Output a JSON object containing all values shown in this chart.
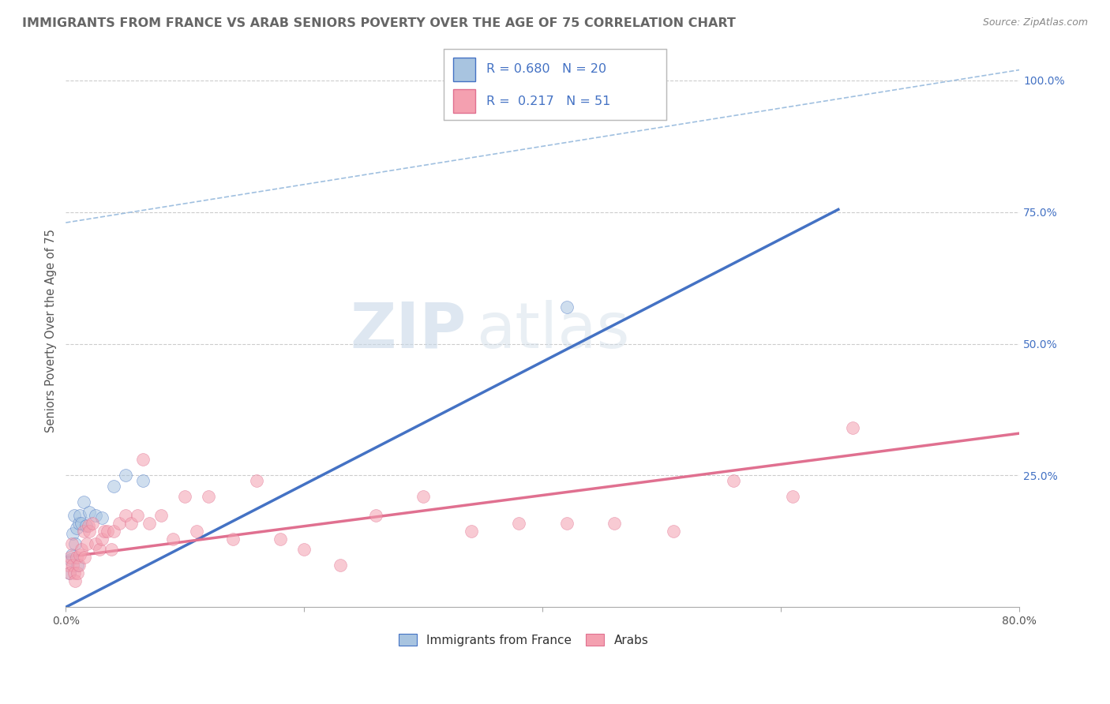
{
  "title": "IMMIGRANTS FROM FRANCE VS ARAB SENIORS POVERTY OVER THE AGE OF 75 CORRELATION CHART",
  "source": "Source: ZipAtlas.com",
  "ylabel": "Seniors Poverty Over the Age of 75",
  "xlabel": "",
  "xlim": [
    0.0,
    0.8
  ],
  "ylim": [
    0.0,
    1.05
  ],
  "xticks": [
    0.0,
    0.2,
    0.4,
    0.6,
    0.8
  ],
  "xticklabels": [
    "0.0%",
    "",
    "",
    "",
    "80.0%"
  ],
  "ytick_positions": [
    0.0,
    0.25,
    0.5,
    0.75,
    1.0
  ],
  "yticklabels_right": [
    "",
    "25.0%",
    "50.0%",
    "75.0%",
    "100.0%"
  ],
  "blue_R": 0.68,
  "blue_N": 20,
  "pink_R": 0.217,
  "pink_N": 51,
  "blue_color": "#a8c4e0",
  "pink_color": "#f4a0b0",
  "blue_line_color": "#4472c4",
  "pink_line_color": "#e07090",
  "diagonal_color": "#a0c0e0",
  "watermark_zip": "ZIP",
  "watermark_atlas": "atlas",
  "title_color": "#666666",
  "legend_text_color": "#333333",
  "legend_RN_color": "#4472c4",
  "blue_scatter_x": [
    0.003,
    0.004,
    0.005,
    0.006,
    0.007,
    0.008,
    0.009,
    0.01,
    0.011,
    0.012,
    0.013,
    0.015,
    0.017,
    0.02,
    0.025,
    0.03,
    0.04,
    0.05,
    0.065,
    0.42
  ],
  "blue_scatter_y": [
    0.065,
    0.09,
    0.1,
    0.14,
    0.175,
    0.12,
    0.15,
    0.08,
    0.16,
    0.175,
    0.16,
    0.2,
    0.155,
    0.18,
    0.175,
    0.17,
    0.23,
    0.25,
    0.24,
    0.57
  ],
  "pink_scatter_x": [
    0.002,
    0.003,
    0.004,
    0.005,
    0.006,
    0.007,
    0.008,
    0.009,
    0.01,
    0.011,
    0.012,
    0.013,
    0.015,
    0.016,
    0.018,
    0.019,
    0.02,
    0.022,
    0.025,
    0.028,
    0.03,
    0.032,
    0.035,
    0.038,
    0.04,
    0.045,
    0.05,
    0.055,
    0.06,
    0.065,
    0.07,
    0.08,
    0.09,
    0.1,
    0.11,
    0.12,
    0.14,
    0.16,
    0.18,
    0.2,
    0.23,
    0.26,
    0.3,
    0.34,
    0.38,
    0.42,
    0.46,
    0.51,
    0.56,
    0.61,
    0.66
  ],
  "pink_scatter_y": [
    0.08,
    0.065,
    0.095,
    0.12,
    0.08,
    0.065,
    0.05,
    0.095,
    0.065,
    0.08,
    0.1,
    0.11,
    0.145,
    0.095,
    0.12,
    0.155,
    0.145,
    0.16,
    0.12,
    0.11,
    0.13,
    0.145,
    0.145,
    0.11,
    0.145,
    0.16,
    0.175,
    0.16,
    0.175,
    0.28,
    0.16,
    0.175,
    0.13,
    0.21,
    0.145,
    0.21,
    0.13,
    0.24,
    0.13,
    0.11,
    0.08,
    0.175,
    0.21,
    0.145,
    0.16,
    0.16,
    0.16,
    0.145,
    0.24,
    0.21,
    0.34
  ],
  "blue_line_x": [
    0.0,
    0.648
  ],
  "blue_line_y": [
    0.0,
    0.755
  ],
  "pink_line_x": [
    0.0,
    0.8
  ],
  "pink_line_y": [
    0.095,
    0.33
  ],
  "diag_line_x": [
    0.0,
    0.8
  ],
  "diag_line_y": [
    0.73,
    1.02
  ],
  "marker_size": 130,
  "marker_alpha": 0.55,
  "background_color": "#ffffff",
  "grid_color": "#cccccc",
  "title_fontsize": 11.5,
  "label_fontsize": 10.5,
  "tick_fontsize": 10,
  "source_fontsize": 9
}
